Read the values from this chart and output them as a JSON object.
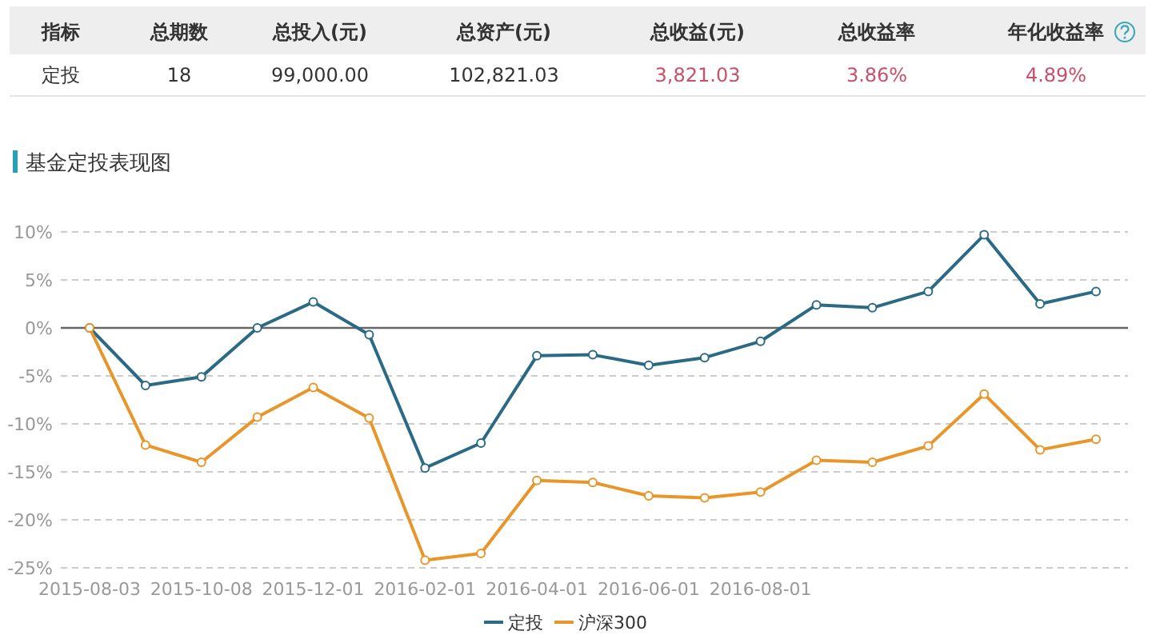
{
  "chart_data": [
    {
      "type": "other",
      "annotations": [
        "指标",
        "总期数",
        "总投入(元)",
        "总资产(元)",
        "总收益(元)",
        "总收益率",
        "年化收益率",
        "定投",
        "18",
        "99,000.00",
        "102,821.03",
        "3,821.03",
        "3.86%",
        "4.89%"
      ]
    },
    {
      "type": "line",
      "title": "基金定投表现图",
      "categories": [
        "2015-08-03",
        null,
        "2015-10-08",
        null,
        "2015-12-01",
        null,
        "2016-02-01",
        null,
        "2016-04-01",
        null,
        "2016-06-01",
        null,
        "2016-08-01",
        null,
        null,
        null,
        null,
        null,
        null
      ],
      "series": [
        {
          "name": "定投",
          "color": "#2b6a84",
          "values": [
            0,
            -6.0,
            -5.1,
            0,
            2.7,
            -0.7,
            -14.6,
            -12.0,
            -2.9,
            -2.8,
            -3.9,
            -3.1,
            -1.4,
            2.4,
            2.1,
            3.8,
            9.7,
            2.5,
            3.8
          ]
        },
        {
          "name": "沪深300",
          "color": "#e8952a",
          "values": [
            0,
            -12.2,
            -14.0,
            -9.3,
            -6.2,
            -9.4,
            -24.2,
            -23.5,
            -15.9,
            -16.1,
            -17.5,
            -17.7,
            -17.1,
            -13.8,
            -14.0,
            -12.3,
            -6.9,
            -12.7,
            -11.6
          ]
        }
      ],
      "ylim": [
        -25,
        10
      ],
      "yticks": [
        {
          "value": -25,
          "label": "-25%"
        },
        {
          "value": -20,
          "label": "-20%"
        },
        {
          "value": -15,
          "label": "-15%"
        },
        {
          "value": -10,
          "label": "-10%"
        },
        {
          "value": -5,
          "label": "-5%"
        },
        {
          "value": 0,
          "label": "0%"
        },
        {
          "value": 5,
          "label": "5%"
        },
        {
          "value": 10,
          "label": "10%"
        }
      ],
      "grid": "y",
      "ref_lines": [
        {
          "axis": "y",
          "value": 0,
          "color": "#666666"
        }
      ],
      "legend": "bottom",
      "marker": "circle",
      "line_style": "solid"
    }
  ]
}
